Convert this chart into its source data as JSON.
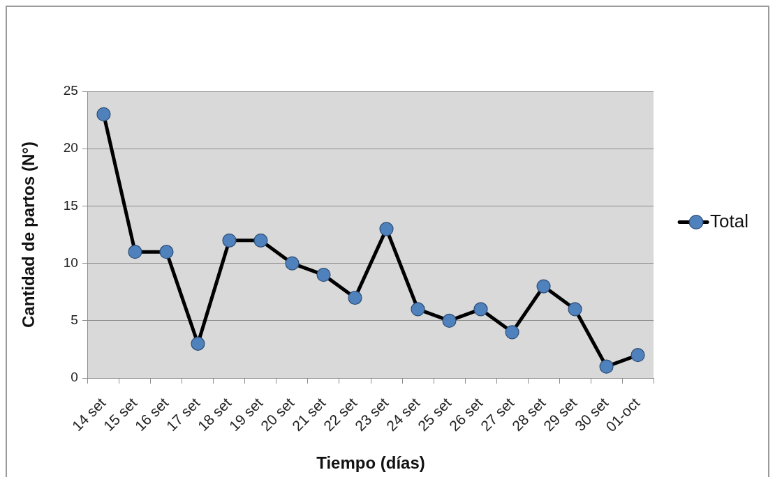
{
  "chart_data": {
    "type": "line",
    "xlabel": "Tiempo (días)",
    "ylabel": "Cantidad de partos (N°)",
    "categories": [
      "14 set",
      "15 set",
      "16 set",
      "17 set",
      "18 set",
      "19 set",
      "20 set",
      "21 set",
      "22 set",
      "23 set",
      "24 set",
      "25 set",
      "26 set",
      "27 set",
      "28 set",
      "29 set",
      "30 set",
      "01-oct"
    ],
    "series": [
      {
        "name": "Total",
        "color": "#000000",
        "colors": [
          "#4f81bd",
          "#4f81bd",
          "#4f81bd",
          "#4f81bd",
          "#4f81bd",
          "#4f81bd",
          "#4f81bd",
          "#4f81bd",
          "#4f81bd",
          "#4f81bd",
          "#4f81bd",
          "#4f81bd",
          "#4f81bd",
          "#4f81bd",
          "#4f81bd",
          "#4f81bd",
          "#4f81bd",
          "#4f81bd"
        ],
        "values": [
          23,
          11,
          11,
          3,
          12,
          12,
          10,
          9,
          7,
          13,
          6,
          5,
          6,
          4,
          8,
          6,
          1,
          2
        ]
      }
    ],
    "ylim": [
      0,
      25
    ],
    "yticks": [
      0,
      5,
      10,
      15,
      20,
      25
    ],
    "grid": "y",
    "legend": "right",
    "marker": "circle",
    "line_style": "solid"
  }
}
